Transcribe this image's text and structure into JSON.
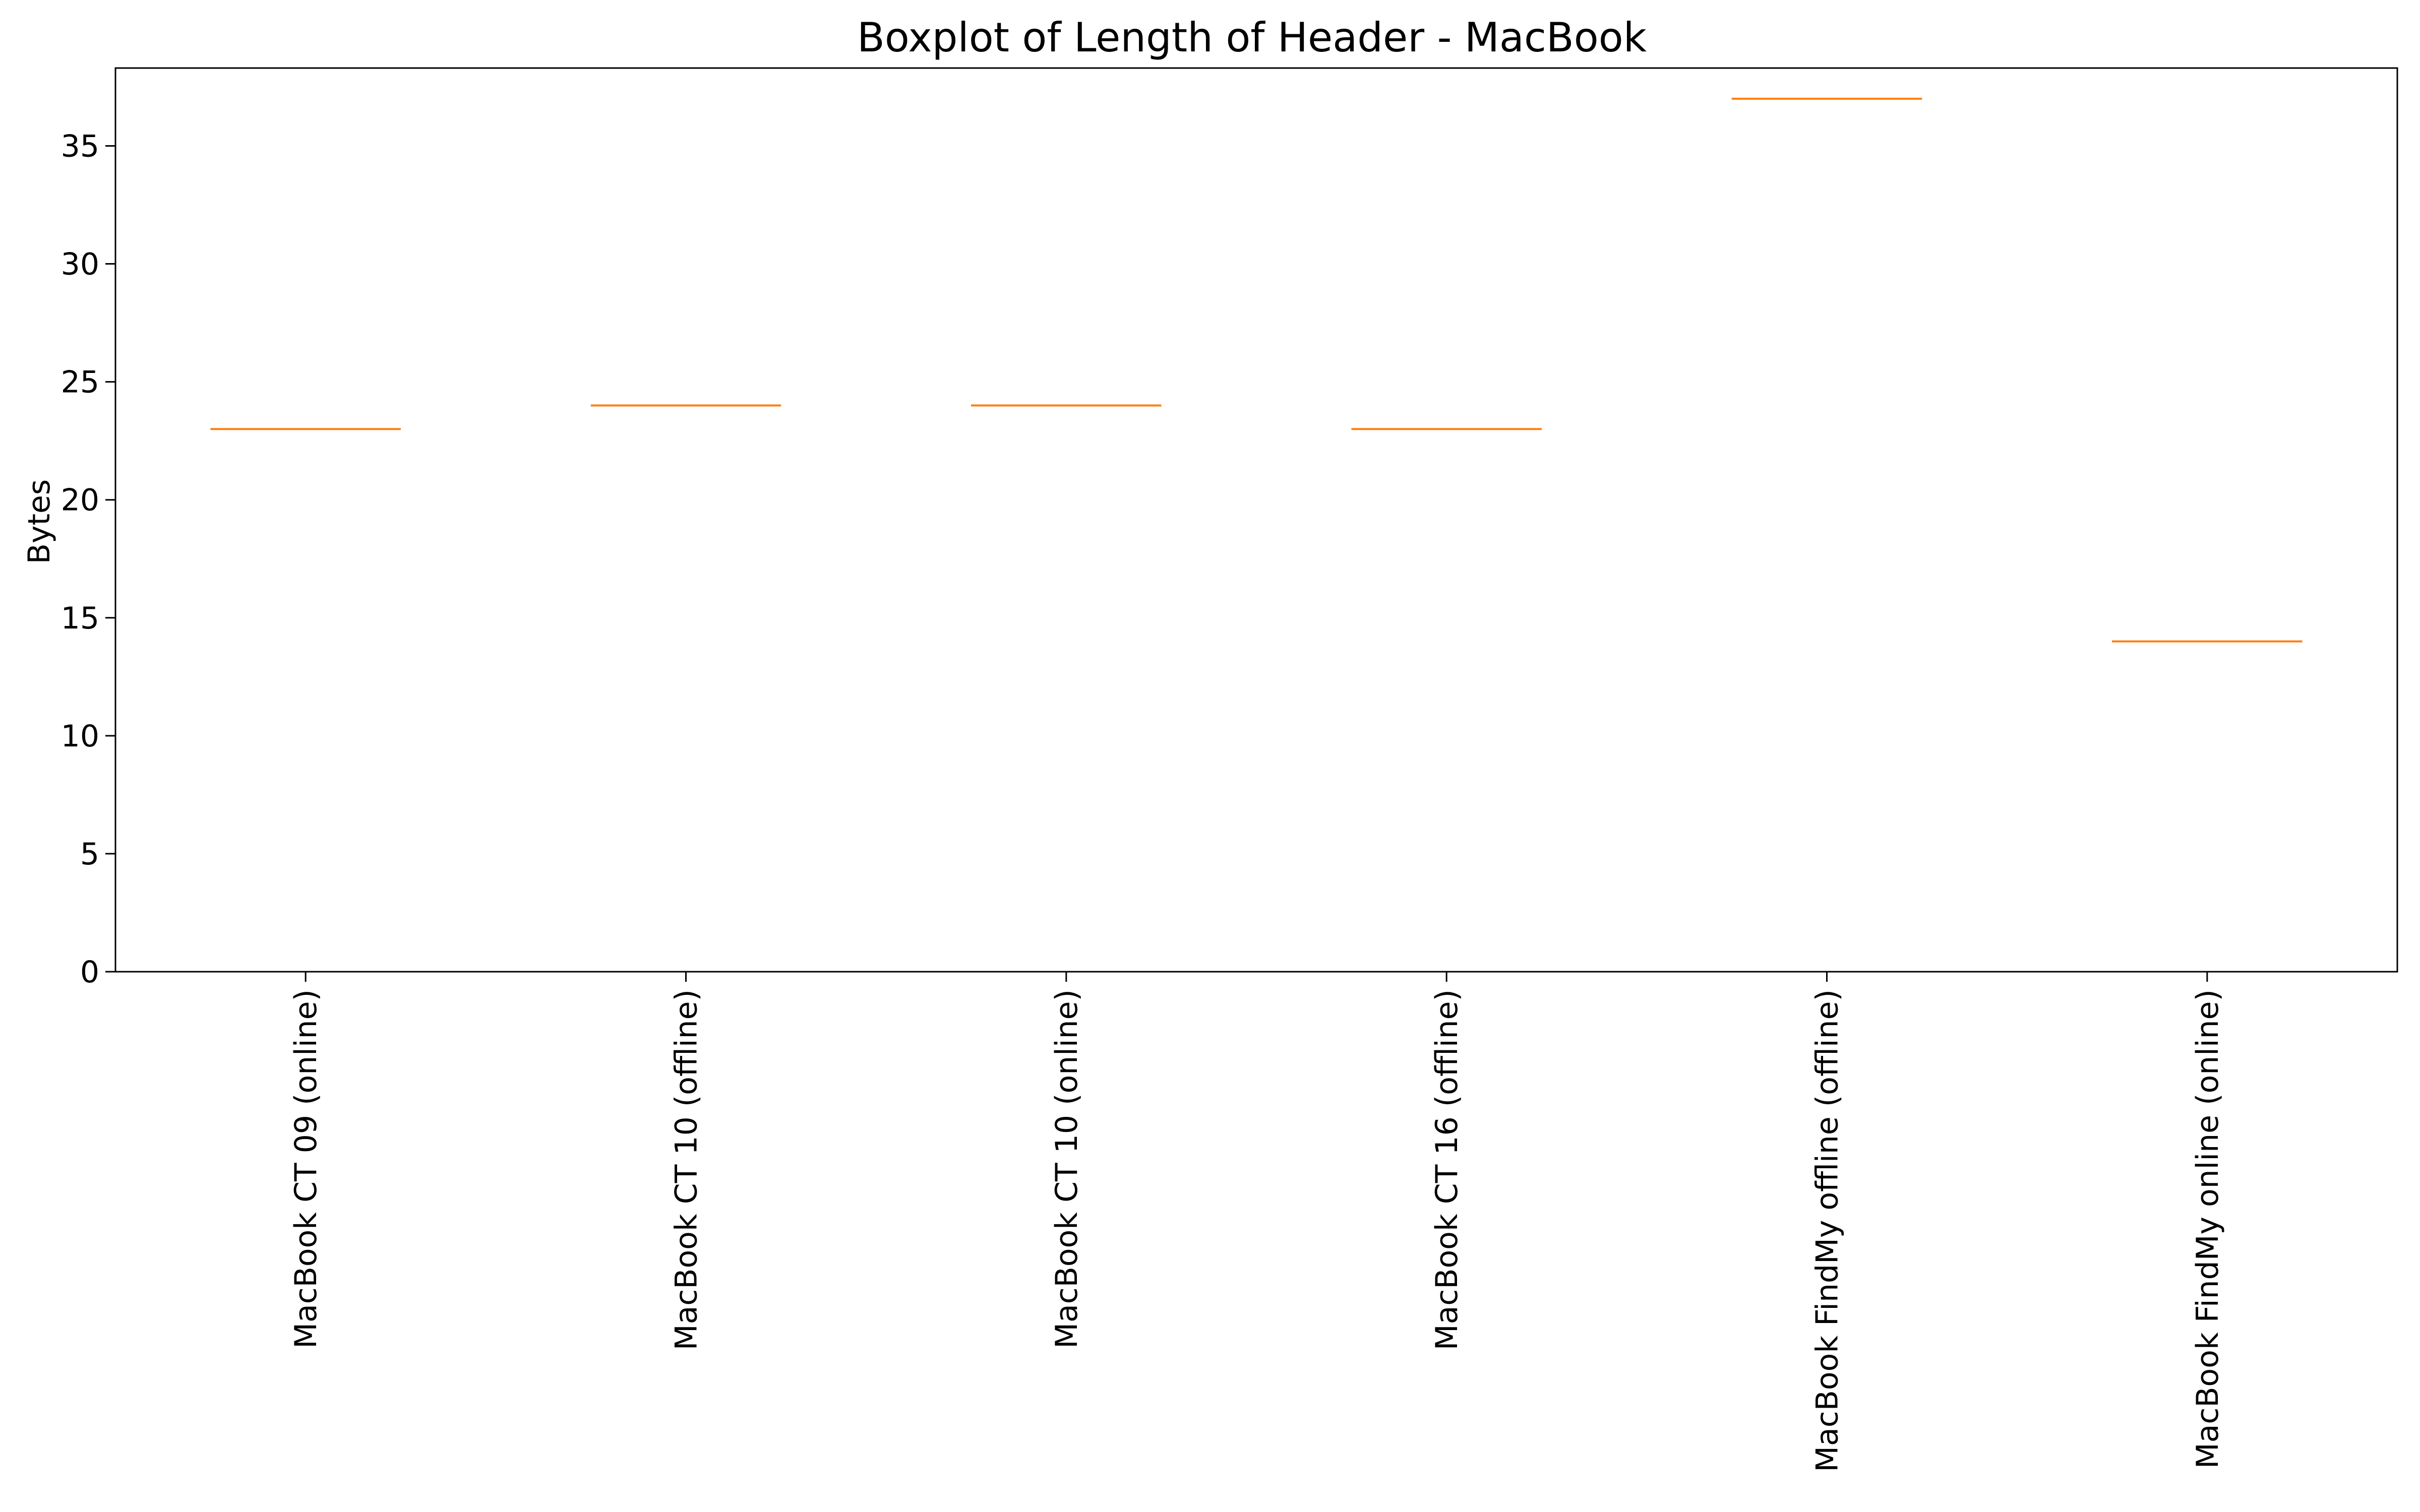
{
  "chart_data": {
    "type": "boxplot",
    "title": "Boxplot of Length of Header - MacBook",
    "xlabel": "",
    "ylabel": "Bytes",
    "ylim": [
      0,
      38.3
    ],
    "yticks": [
      0,
      5,
      10,
      15,
      20,
      25,
      30,
      35
    ],
    "grid": false,
    "categories": [
      "MacBook CT 09 (online)",
      "MacBook CT 10 (offline)",
      "MacBook CT 10 (online)",
      "MacBook CT 16 (offline)",
      "MacBook FindMy offline (offline)",
      "MacBook FindMy online (online)"
    ],
    "medians": [
      23,
      24,
      24,
      23,
      37,
      14
    ],
    "colors": {
      "median": "#ff7f0e",
      "box": "#000000",
      "axes": "#000000"
    }
  }
}
